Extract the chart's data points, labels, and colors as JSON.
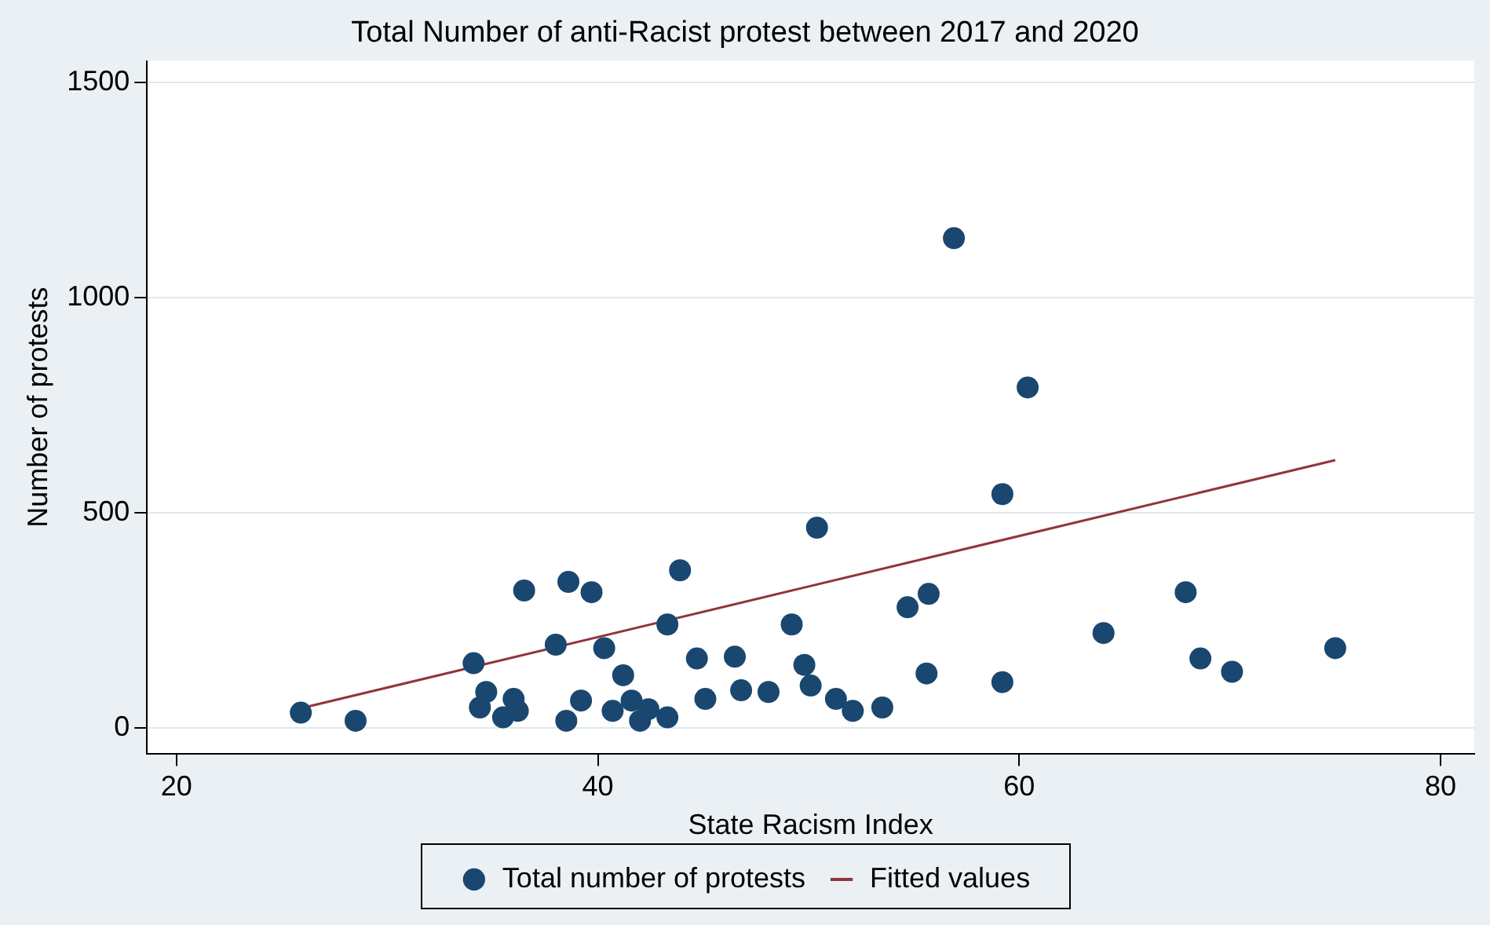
{
  "chart_data": {
    "type": "scatter",
    "title": "Total Number of anti-Racist protest between 2017 and 2020",
    "xlabel": "State Racism Index",
    "ylabel": "Number of protests",
    "xlim": [
      18.6,
      81.6
    ],
    "xticks": [
      20,
      40,
      60,
      80
    ],
    "ylim": [
      -60,
      1550
    ],
    "yticks": [
      0,
      500,
      1000,
      1500
    ],
    "grid": "y",
    "legend": "bottom",
    "series": [
      {
        "name": "Total number of protests",
        "type": "scatter",
        "marker": "circle",
        "color": "#1a476f",
        "x": [
          25.9,
          28.5,
          34.1,
          34.7,
          34.4,
          35.5,
          36.0,
          36.2,
          36.5,
          38.0,
          38.5,
          38.6,
          39.2,
          39.7,
          40.3,
          41.2,
          40.7,
          41.6,
          42.4,
          42.0,
          43.3,
          43.3,
          43.9,
          44.7,
          45.1,
          46.5,
          46.8,
          48.1,
          49.2,
          49.8,
          50.1,
          50.4,
          51.3,
          52.1,
          53.5,
          54.7,
          55.7,
          55.6,
          56.9,
          59.2,
          59.2,
          60.4,
          64.0,
          67.9,
          68.6,
          70.1,
          75.0
        ],
        "values": [
          35,
          16,
          150,
          83,
          47,
          24,
          67,
          39,
          319,
          193,
          16,
          339,
          63,
          315,
          185,
          122,
          39,
          63,
          43,
          16,
          240,
          24,
          366,
          161,
          67,
          165,
          87,
          83,
          240,
          146,
          98,
          465,
          67,
          39,
          47,
          280,
          311,
          126,
          1138,
          543,
          106,
          791,
          220,
          315,
          161,
          130,
          185
        ]
      },
      {
        "name": "Fitted values",
        "type": "line",
        "color": "#90353b",
        "x": [
          25.9,
          75.0
        ],
        "values": [
          45,
          622
        ]
      }
    ]
  }
}
